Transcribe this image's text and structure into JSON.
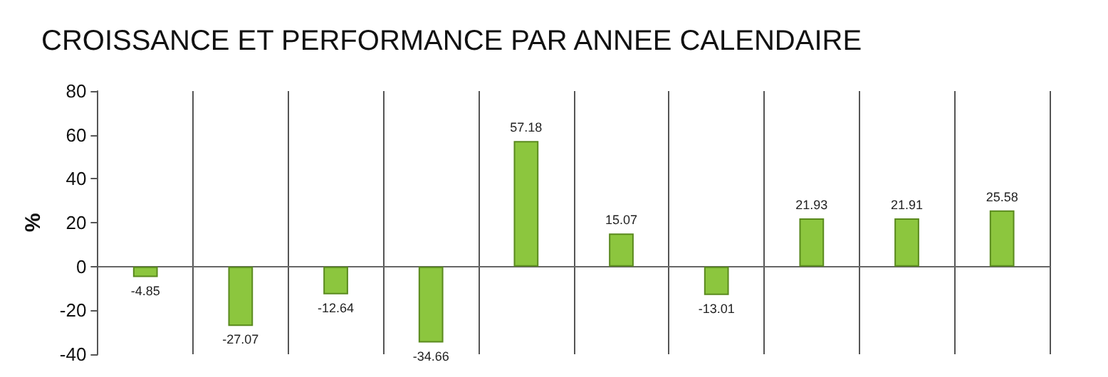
{
  "chart_data": {
    "type": "bar",
    "title": "CROISSANCE ET PERFORMANCE PAR ANNEE CALENDAIRE",
    "ylabel": "%",
    "categories": [
      null,
      null,
      null,
      null,
      null,
      null,
      null,
      null,
      null,
      null
    ],
    "values": [
      -4.85,
      -27.07,
      -12.64,
      -34.66,
      57.18,
      15.07,
      -13.01,
      21.93,
      21.91,
      25.58
    ],
    "color": "#8cc63e",
    "ylim": [
      -40,
      80
    ],
    "yticks": [
      -40,
      -20,
      0,
      20,
      40,
      60,
      80
    ],
    "grid": "x",
    "data_labels": true
  }
}
